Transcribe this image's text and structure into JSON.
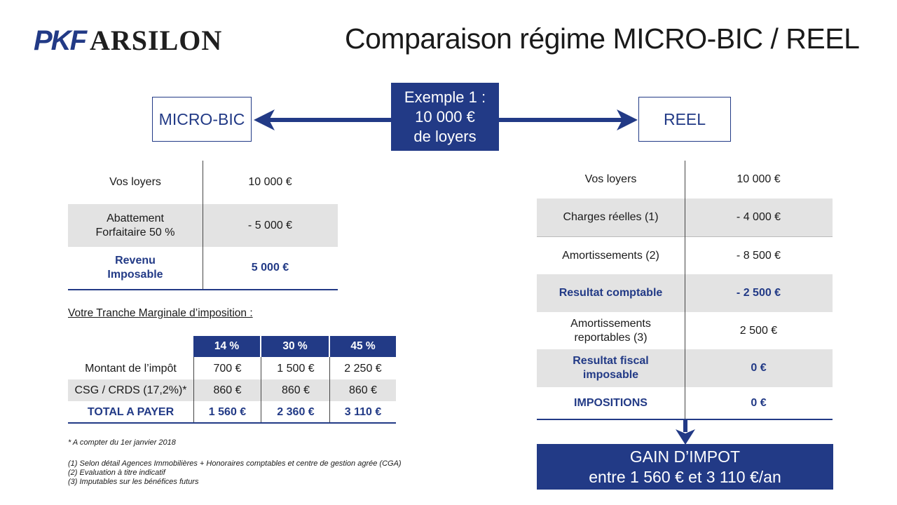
{
  "logo": {
    "part1": "PKF",
    "part2": "ARSILON"
  },
  "title": "Comparaison régime MICRO-BIC / REEL",
  "micro_label": "MICRO-BIC",
  "reel_label": "REEL",
  "example": {
    "line1": "Exemple 1 :",
    "line2": "10 000 €",
    "line3": "de loyers"
  },
  "micro_table": [
    {
      "label": "Vos loyers",
      "value": "10 000 €"
    },
    {
      "label": "Abattement Forfaitaire 50 %",
      "value": "- 5 000 €"
    },
    {
      "label": "Revenu Imposable",
      "value": "5 000 €"
    }
  ],
  "tmi_label": "Votre Tranche Marginale d’imposition :",
  "tranche_table": {
    "headers": [
      "14 %",
      "30 %",
      "45 %"
    ],
    "rows": [
      {
        "label": "Montant de l’impôt",
        "values": [
          "700 €",
          "1 500 €",
          "2 250 €"
        ]
      },
      {
        "label": "CSG / CRDS (17,2%)*",
        "values": [
          "860 €",
          "860 €",
          "860 €"
        ]
      },
      {
        "label": "TOTAL A PAYER",
        "values": [
          "1 560 €",
          "2 360 €",
          "3 110 €"
        ]
      }
    ]
  },
  "footnotes": {
    "note_star": "* A compter du 1er janvier 2018",
    "note1": "(1) Selon détail Agences Immobilières + Honoraires comptables et centre de gestion agrée (CGA)",
    "note2": "(2) Evaluation à titre indicatif",
    "note3": "(3) Imputables sur les bénéfices futurs"
  },
  "reel_table": [
    {
      "label": "Vos loyers",
      "value": "10 000 €"
    },
    {
      "label": "Charges réelles (1)",
      "value": "- 4 000 €"
    },
    {
      "label": "Amortissements (2)",
      "value": "- 8 500 €"
    },
    {
      "label": "Resultat comptable",
      "value": "- 2 500 €"
    },
    {
      "label": "Amortissements reportables (3)",
      "value": "2 500 €"
    },
    {
      "label": "Resultat fiscal imposable",
      "value": "0 €"
    },
    {
      "label": "IMPOSITIONS",
      "value": "0 €"
    }
  ],
  "gain": {
    "line1": "GAIN D’IMPOT",
    "line2": "entre 1 560 € et 3 110 €/an"
  },
  "colors": {
    "navy": "#223a86",
    "grey_row": "#e3e3e3"
  }
}
